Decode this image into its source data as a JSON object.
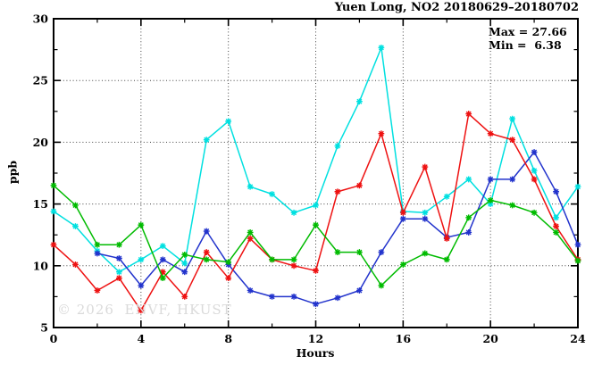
{
  "chart_data": {
    "type": "line",
    "title": "Yuen Long, NO2 20180629–20180702",
    "annotations": {
      "max_label": "Max = 27.66",
      "min_label": "Min =  6.38"
    },
    "xlabel": "Hours",
    "ylabel": "ppb",
    "watermark": "© 2026  ENVF, HKUST",
    "xlim": [
      0,
      24
    ],
    "ylim": [
      5,
      30
    ],
    "x_major_ticks": [
      0,
      4,
      8,
      12,
      16,
      20,
      24
    ],
    "x_minor_step": 2,
    "y_major_ticks": [
      5,
      10,
      15,
      20,
      25,
      30
    ],
    "y_minor_step": 2.5,
    "grid_x": [
      4,
      8,
      12,
      16,
      20
    ],
    "grid_y": [
      10,
      15,
      20,
      25
    ],
    "grid_on": true,
    "legend": "none",
    "x": [
      0,
      1,
      2,
      3,
      4,
      5,
      6,
      7,
      8,
      9,
      10,
      11,
      12,
      13,
      14,
      15,
      16,
      17,
      18,
      19,
      20,
      21,
      22,
      23,
      24
    ],
    "series": [
      {
        "name": "cyan-line",
        "color": "#00e0e0",
        "values": [
          14.4,
          13.2,
          11.2,
          9.5,
          10.5,
          11.6,
          10.2,
          20.2,
          21.7,
          16.4,
          15.8,
          14.3,
          14.9,
          19.7,
          23.3,
          27.66,
          14.4,
          14.3,
          15.6,
          17.0,
          15.0,
          21.9,
          17.7,
          13.9,
          16.4
        ]
      },
      {
        "name": "blue-line",
        "color": "#2233cc",
        "values": [
          null,
          null,
          11.0,
          10.6,
          8.4,
          10.5,
          9.5,
          12.8,
          10.1,
          8.0,
          7.5,
          7.5,
          6.9,
          7.4,
          8.0,
          11.1,
          13.8,
          13.8,
          12.3,
          12.7,
          17.0,
          17.0,
          19.2,
          16.0,
          11.7
        ]
      },
      {
        "name": "red-line",
        "color": "#ee1111",
        "values": [
          11.7,
          10.1,
          8.0,
          9.0,
          6.38,
          9.5,
          7.5,
          11.1,
          9.0,
          12.2,
          10.5,
          10.0,
          9.6,
          16.0,
          16.5,
          20.7,
          14.3,
          18.0,
          12.2,
          22.3,
          20.7,
          20.2,
          17.0,
          13.2,
          10.5
        ]
      },
      {
        "name": "green-line",
        "color": "#00bb00",
        "values": [
          16.5,
          14.9,
          11.7,
          11.7,
          13.3,
          9.0,
          10.9,
          10.5,
          10.3,
          12.7,
          10.5,
          10.5,
          13.3,
          11.1,
          11.1,
          8.4,
          10.1,
          11.0,
          10.5,
          13.9,
          15.3,
          14.9,
          14.3,
          12.7,
          10.4
        ]
      }
    ]
  }
}
